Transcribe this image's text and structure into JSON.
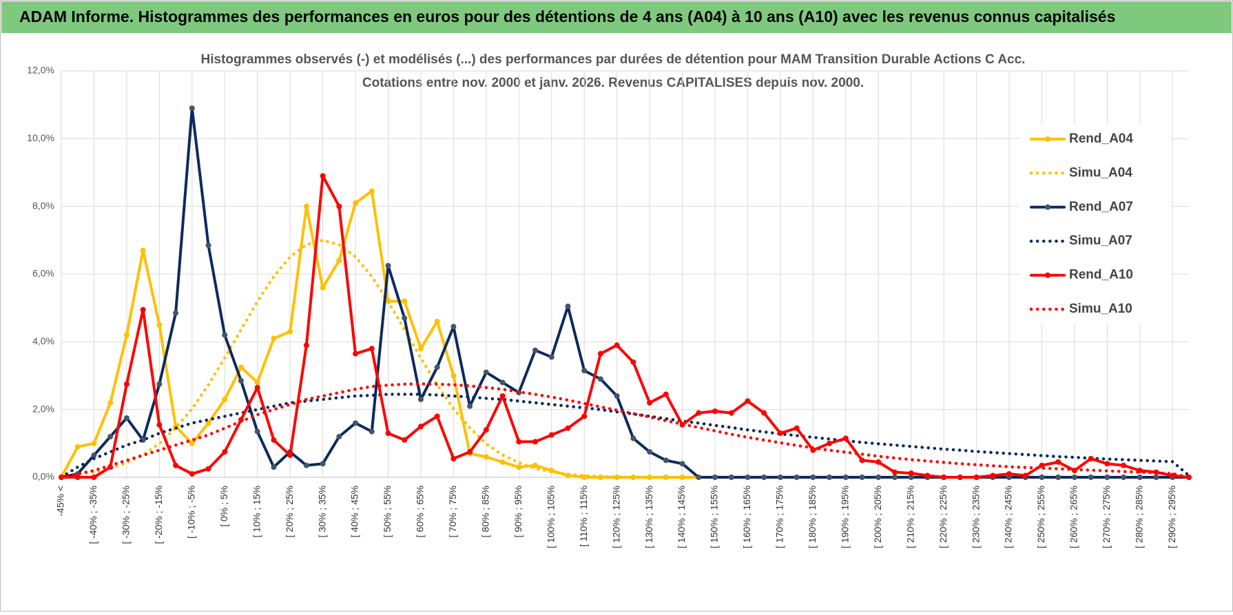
{
  "header": {
    "title": "ADAM Informe. Histogrammes des performances en euros pour des détentions de 4 ans (A04) à 10 ans (A10) avec les revenus connus capitalisés"
  },
  "chart_data": {
    "type": "line",
    "title": "Histogrammes observés (-) et modélisés (...) des performances par durées de détention pour MAM Transition Durable Actions C Acc.",
    "subtitle": "Cotations entre nov. 2000 et janv. 2026. Revenus CAPITALISES depuis nov. 2000.",
    "categories": [
      "-45% <",
      null,
      "[ -40% ; -35%",
      null,
      "[ -30% ; -25%",
      null,
      "[ -20% ; -15%",
      null,
      "[ -10% ; -5%",
      null,
      "[ 0% ; 5%",
      null,
      "[ 10% ; 15%",
      null,
      "[ 20% ; 25%",
      null,
      "[ 30% ; 35%",
      null,
      "[ 40% ; 45%",
      null,
      "[ 50% ; 55%",
      null,
      "[ 60% ; 65%",
      null,
      "[ 70% ; 75%",
      null,
      "[ 80% ; 85%",
      null,
      "[ 90% ; 95%",
      null,
      "[ 100% ; 105%",
      null,
      "[ 110% ; 115%",
      null,
      "[ 120% ; 125%",
      null,
      "[ 130% ; 135%",
      null,
      "[ 140% ; 145%",
      null,
      "[ 150% ; 155%",
      null,
      "[ 160% ; 165%",
      null,
      "[ 170% ; 175%",
      null,
      "[ 180% ; 185%",
      null,
      "[ 190% ; 195%",
      null,
      "[ 200% ; 205%",
      null,
      "[ 210% ; 215%",
      null,
      "[ 220% ; 225%",
      null,
      "[ 230% ; 235%",
      null,
      "[ 240% ; 245%",
      null,
      "[ 250% ; 255%",
      null,
      "[ 260% ; 265%",
      null,
      "[ 270% ; 275%",
      null,
      "[ 280% ; 285%",
      null,
      "[ 290% ; 295%",
      null
    ],
    "ylim": [
      0,
      12
    ],
    "yticks": [
      {
        "value": 0,
        "label": "0,0%"
      },
      {
        "value": 2,
        "label": "2,0%"
      },
      {
        "value": 4,
        "label": "4,0%"
      },
      {
        "value": 6,
        "label": "6,0%"
      },
      {
        "value": 8,
        "label": "8,0%"
      },
      {
        "value": 10,
        "label": "10,0%"
      },
      {
        "value": 12,
        "label": "12,0%"
      }
    ],
    "grid": true,
    "legend": "right",
    "series": [
      {
        "name": "Rend_A04",
        "color": "#ffc000",
        "style": "solid",
        "markers": true,
        "values": [
          0,
          0.9,
          1.0,
          2.2,
          4.2,
          6.7,
          4.5,
          1.5,
          1.0,
          1.6,
          2.3,
          3.25,
          2.8,
          4.1,
          4.3,
          8.0,
          5.6,
          6.4,
          8.1,
          8.45,
          5.2,
          5.2,
          3.8,
          4.6,
          3.0,
          0.7,
          0.6,
          0.45,
          0.3,
          0.35,
          0.2,
          0.05,
          0,
          0,
          0,
          0,
          0,
          0,
          0,
          0,
          0,
          0,
          0,
          0,
          0,
          0,
          0,
          0,
          0,
          0,
          0,
          0,
          0,
          0,
          0,
          0,
          0,
          0,
          0,
          0,
          0,
          0,
          0,
          0,
          0,
          0,
          0,
          0,
          0,
          0
        ]
      },
      {
        "name": "Simu_A04",
        "color": "#ffc000",
        "style": "dotted",
        "markers": false,
        "values": [
          0.05,
          0.09,
          0.16,
          0.26,
          0.43,
          0.66,
          0.99,
          1.46,
          2.02,
          2.73,
          3.52,
          4.36,
          5.19,
          5.93,
          6.51,
          6.87,
          7.0,
          6.87,
          6.51,
          5.93,
          5.19,
          4.36,
          3.52,
          2.73,
          2.02,
          1.46,
          0.99,
          0.66,
          0.43,
          0.26,
          0.16,
          0.09,
          0.05,
          0.03,
          0.01,
          0,
          0,
          0,
          0,
          0,
          0,
          0,
          0,
          0,
          0,
          0,
          0,
          0,
          0,
          0,
          0,
          0,
          0,
          0,
          0,
          0,
          0,
          0,
          0,
          0,
          0,
          0,
          0,
          0,
          0,
          0,
          0,
          0,
          0,
          0
        ]
      },
      {
        "name": "Rend_A07",
        "color": "#0d2a5e",
        "style": "solid",
        "markers": true,
        "values": [
          0,
          0.1,
          0.65,
          1.2,
          1.75,
          1.1,
          2.75,
          4.85,
          10.9,
          6.85,
          4.2,
          2.85,
          1.35,
          0.3,
          0.75,
          0.35,
          0.4,
          1.2,
          1.6,
          1.35,
          6.25,
          4.7,
          2.3,
          3.25,
          4.45,
          2.1,
          3.1,
          2.8,
          2.5,
          3.75,
          3.55,
          5.05,
          3.15,
          2.9,
          2.4,
          1.15,
          0.75,
          0.5,
          0.4,
          0,
          0,
          0,
          0,
          0,
          0,
          0,
          0,
          0,
          0,
          0,
          0,
          0,
          0,
          0,
          0,
          0,
          0,
          0,
          0,
          0,
          0,
          0,
          0,
          0,
          0,
          0,
          0,
          0,
          0,
          0
        ]
      },
      {
        "name": "Simu_A07",
        "color": "#0d2a5e",
        "style": "dotted",
        "markers": false,
        "values": [
          0,
          0.3,
          0.55,
          0.75,
          0.95,
          1.1,
          1.3,
          1.45,
          1.6,
          1.7,
          1.8,
          1.9,
          2.0,
          2.1,
          2.2,
          2.25,
          2.3,
          2.35,
          2.4,
          2.42,
          2.45,
          2.45,
          2.45,
          2.43,
          2.4,
          2.37,
          2.33,
          2.3,
          2.25,
          2.2,
          2.15,
          2.1,
          2.05,
          2.0,
          1.93,
          1.87,
          1.8,
          1.73,
          1.66,
          1.6,
          1.53,
          1.47,
          1.4,
          1.34,
          1.28,
          1.23,
          1.18,
          1.13,
          1.08,
          1.03,
          0.99,
          0.95,
          0.91,
          0.87,
          0.83,
          0.8,
          0.76,
          0.73,
          0.7,
          0.67,
          0.64,
          0.61,
          0.59,
          0.56,
          0.54,
          0.52,
          0.5,
          0.48,
          0.46,
          0.05
        ]
      },
      {
        "name": "Rend_A10",
        "color": "#ff0000",
        "style": "solid",
        "markers": true,
        "values": [
          0,
          0,
          0,
          0.3,
          2.75,
          4.95,
          1.55,
          0.35,
          0.1,
          0.25,
          0.75,
          1.7,
          2.65,
          1.1,
          0.65,
          3.9,
          8.9,
          8.0,
          3.65,
          3.8,
          1.3,
          1.1,
          1.5,
          1.8,
          0.55,
          0.75,
          1.4,
          2.4,
          1.05,
          1.05,
          1.25,
          1.45,
          1.8,
          3.65,
          3.9,
          3.4,
          2.2,
          2.45,
          1.55,
          1.9,
          1.95,
          1.9,
          2.25,
          1.9,
          1.3,
          1.45,
          0.8,
          1.0,
          1.15,
          0.5,
          0.45,
          0.15,
          0.12,
          0.05,
          0,
          0,
          0,
          0.05,
          0.1,
          0.05,
          0.35,
          0.45,
          0.2,
          0.55,
          0.4,
          0.35,
          0.2,
          0.15,
          0.05,
          0
        ]
      },
      {
        "name": "Simu_A10",
        "color": "#ff0000",
        "style": "dotted",
        "markers": false,
        "values": [
          0,
          0.1,
          0.2,
          0.35,
          0.5,
          0.65,
          0.8,
          0.95,
          1.1,
          1.25,
          1.45,
          1.65,
          1.85,
          2.0,
          2.15,
          2.3,
          2.4,
          2.5,
          2.6,
          2.68,
          2.72,
          2.75,
          2.76,
          2.75,
          2.73,
          2.7,
          2.65,
          2.6,
          2.52,
          2.45,
          2.37,
          2.28,
          2.18,
          2.08,
          1.98,
          1.88,
          1.78,
          1.67,
          1.57,
          1.47,
          1.37,
          1.27,
          1.18,
          1.1,
          1.02,
          0.94,
          0.87,
          0.8,
          0.74,
          0.68,
          0.62,
          0.57,
          0.52,
          0.48,
          0.44,
          0.4,
          0.37,
          0.34,
          0.31,
          0.29,
          0.27,
          0.25,
          0.23,
          0.21,
          0.19,
          0.17,
          0.15,
          0.13,
          0.11,
          0
        ]
      }
    ]
  }
}
